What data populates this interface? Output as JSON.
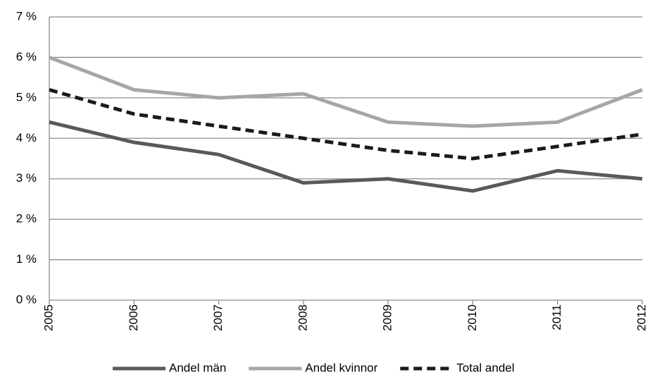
{
  "chart_data": {
    "type": "line",
    "categories": [
      "2005",
      "2006",
      "2007",
      "2008",
      "2009",
      "2010",
      "2011",
      "2012"
    ],
    "series": [
      {
        "name": "Andel män",
        "color": "#595959",
        "dashed": false,
        "values": [
          4.4,
          3.9,
          3.6,
          2.9,
          3.0,
          2.7,
          3.2,
          3.0
        ]
      },
      {
        "name": "Andel kvinnor",
        "color": "#a6a6a6",
        "dashed": false,
        "values": [
          6.0,
          5.2,
          5.0,
          5.1,
          4.4,
          4.3,
          4.4,
          5.2
        ]
      },
      {
        "name": "Total andel",
        "color": "#1a1a1a",
        "dashed": true,
        "values": [
          5.2,
          4.6,
          4.3,
          4.0,
          3.7,
          3.5,
          3.8,
          4.1
        ]
      }
    ],
    "ylim": [
      0,
      7
    ],
    "yticks": [
      {
        "value": 0,
        "label": "0 %"
      },
      {
        "value": 1,
        "label": "1 %"
      },
      {
        "value": 2,
        "label": "2 %"
      },
      {
        "value": 3,
        "label": "3 %"
      },
      {
        "value": 4,
        "label": "4 %"
      },
      {
        "value": 5,
        "label": "5 %"
      },
      {
        "value": 6,
        "label": "6 %"
      },
      {
        "value": 7,
        "label": "7 %"
      }
    ],
    "grid": true,
    "legend": "bottom"
  }
}
